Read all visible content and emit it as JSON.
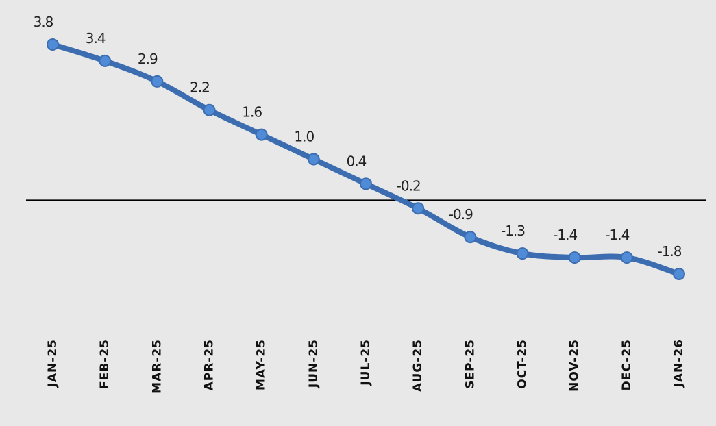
{
  "chart_data": {
    "type": "line",
    "categories": [
      "JAN-25",
      "FEB-25",
      "MAR-25",
      "APR-25",
      "MAY-25",
      "JUN-25",
      "JUL-25",
      "AUG-25",
      "SEP-25",
      "OCT-25",
      "NOV-25",
      "DEC-25",
      "JAN-26"
    ],
    "values": [
      3.8,
      3.4,
      2.9,
      2.2,
      1.6,
      1.0,
      0.4,
      -0.2,
      -0.9,
      -1.3,
      -1.4,
      -1.4,
      -1.8
    ],
    "value_labels": [
      "3.8",
      "3.4",
      "2.9",
      "2.2",
      "1.6",
      "1.0",
      "0.4",
      "-0.2",
      "-0.9",
      "-1.3",
      "-1.4",
      "-1.4",
      "-1.8"
    ],
    "color": "#3c6db0",
    "marker_color": "#4f8bd6"
  }
}
